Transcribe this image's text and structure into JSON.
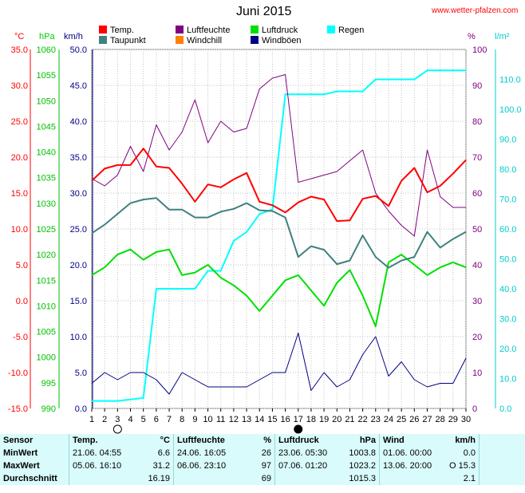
{
  "header": {
    "title": "Juni 2015",
    "site": "www.wetter-pfalzen.com"
  },
  "units": {
    "temp": "°C",
    "pressure": "hPa",
    "wind": "km/h",
    "humidity": "%",
    "rain": "l/m²"
  },
  "legend": [
    {
      "label": "Temp.",
      "color": "#ff0000"
    },
    {
      "label": "Luftfeuchte",
      "color": "#800080"
    },
    {
      "label": "Luftdruck",
      "color": "#00e000"
    },
    {
      "label": "Regen",
      "color": "#00ffff"
    },
    {
      "label": "Taupunkt",
      "color": "#408080"
    },
    {
      "label": "Windchill",
      "color": "#ff8000"
    },
    {
      "label": "Windböen",
      "color": "#000080"
    }
  ],
  "colors": {
    "temp": "#ff0000",
    "pressure": "#00d000",
    "humidity": "#800080",
    "rain": "#00ffff",
    "wind_axis": "#000080",
    "dew": "#408080",
    "gust": "#000080"
  },
  "chart_data": {
    "type": "line",
    "x": [
      1,
      2,
      3,
      4,
      5,
      6,
      7,
      8,
      9,
      10,
      11,
      12,
      13,
      14,
      15,
      16,
      17,
      18,
      19,
      20,
      21,
      22,
      23,
      24,
      25,
      26,
      27,
      28,
      29,
      30
    ],
    "axes": {
      "temp": {
        "label": "°C",
        "ylim": [
          -15,
          35
        ],
        "ticks": [
          "35.0",
          "30.0",
          "25.0",
          "20.0",
          "15.0",
          "10.0",
          "5.0",
          "0.0",
          "-5.0",
          "-10.0",
          "-15.0"
        ]
      },
      "pressure": {
        "label": "hPa",
        "ylim": [
          990,
          1060
        ],
        "ticks": [
          "1060",
          "1055",
          "1050",
          "1045",
          "1040",
          "1035",
          "1030",
          "1025",
          "1020",
          "1015",
          "1010",
          "1005",
          "1000",
          "995",
          "990"
        ]
      },
      "wind": {
        "label": "km/h",
        "ylim": [
          0,
          50
        ],
        "ticks": [
          "50.0",
          "45.0",
          "40.0",
          "35.0",
          "30.0",
          "25.0",
          "20.0",
          "15.0",
          "10.0",
          "5.0",
          "0.0"
        ]
      },
      "humidity": {
        "label": "%",
        "ylim": [
          0,
          100
        ],
        "ticks": [
          "100",
          "90",
          "80",
          "70",
          "60",
          "50",
          "40",
          "30",
          "20",
          "10",
          "0"
        ]
      },
      "rain": {
        "label": "l/m²",
        "ylim": [
          0,
          120
        ],
        "ticks": [
          "110.0",
          "100.0",
          "90.0",
          "80.0",
          "70.0",
          "60.0",
          "50.0",
          "40.0",
          "30.0",
          "20.0",
          "10.0",
          "0.0"
        ]
      }
    },
    "series": [
      {
        "name": "Temp.",
        "axis": "temp",
        "values": [
          16.7,
          18.4,
          18.9,
          18.9,
          21.2,
          18.7,
          18.5,
          16.3,
          13.8,
          16.2,
          15.8,
          16.9,
          17.8,
          13.8,
          13.3,
          12.3,
          13.7,
          14.5,
          14.1,
          11.1,
          11.2,
          14.2,
          14.6,
          13.2,
          16.7,
          18.5,
          15.1,
          16.0,
          17.7,
          19.6
        ]
      },
      {
        "name": "Taupunkt",
        "axis": "temp",
        "values": [
          9.4,
          10.6,
          12.1,
          13.6,
          14.1,
          14.3,
          12.7,
          12.7,
          11.6,
          11.6,
          12.4,
          12.8,
          13.6,
          12.6,
          12.5,
          11.6,
          6.1,
          7.6,
          7.1,
          5.1,
          5.6,
          9.1,
          6.1,
          4.6,
          5.6,
          6.1,
          9.6,
          7.4,
          8.6,
          9.6
        ]
      },
      {
        "name": "Luftfeuchte",
        "axis": "humidity",
        "values": [
          64,
          62,
          65,
          73,
          66,
          79,
          72,
          77,
          86,
          74,
          80,
          77,
          78,
          89,
          92,
          93,
          63,
          64,
          65,
          66,
          69,
          72,
          60,
          55,
          51,
          48,
          72,
          59,
          56,
          56
        ]
      },
      {
        "name": "Luftdruck",
        "axis": "pressure",
        "values": [
          1016,
          1017.5,
          1020,
          1021,
          1019,
          1020.5,
          1021,
          1016,
          1016.5,
          1018,
          1015.5,
          1014,
          1012,
          1009,
          1012,
          1015,
          1016,
          1013,
          1010,
          1014.5,
          1017,
          1012,
          1006,
          1018.5,
          1020,
          1018,
          1016,
          1017.5,
          1018.5,
          1017.5
        ]
      },
      {
        "name": "Regen",
        "axis": "rain",
        "values": [
          2.5,
          2.5,
          2.5,
          3.0,
          3.5,
          40.0,
          40.0,
          40.0,
          40.0,
          46.0,
          46.0,
          56.0,
          59.0,
          65.0,
          66.5,
          105.0,
          105.0,
          105.0,
          105.0,
          106.0,
          106.0,
          106.0,
          110.0,
          110.0,
          110.0,
          110.0,
          113.0,
          113.0,
          113.0,
          113.0
        ]
      },
      {
        "name": "Windböen",
        "axis": "wind",
        "values": [
          3.5,
          5.0,
          4.0,
          5.0,
          5.0,
          4.0,
          2.0,
          5.0,
          4.0,
          3.0,
          3.0,
          3.0,
          3.0,
          4.0,
          5.0,
          5.0,
          10.5,
          2.5,
          5.0,
          3.0,
          4.0,
          7.5,
          10.0,
          4.5,
          6.5,
          4.0,
          3.0,
          3.5,
          3.5,
          7.0
        ]
      }
    ],
    "moon_markers": [
      {
        "day": 3,
        "phase": "full"
      },
      {
        "day": 17,
        "phase": "new"
      }
    ]
  },
  "stats": {
    "headers": {
      "sensor": "Sensor",
      "temp": "Temp.",
      "temp_unit": "°C",
      "hum": "Luftfeuchte",
      "hum_unit": "%",
      "press": "Luftdruck",
      "press_unit": "hPa",
      "wind": "Wind",
      "wind_unit": "km/h"
    },
    "rows": [
      {
        "label": "MinWert",
        "t_time": "21.06.  04:55",
        "t_val": "6.6",
        "h_time": "24.06.  16:05",
        "h_val": "26",
        "p_time": "23.06.  05:30",
        "p_val": "1003.8",
        "w_time": "01.06.  00:00",
        "w_val": "0.0"
      },
      {
        "label": "MaxWert",
        "t_time": "05.06.  16:10",
        "t_val": "31.2",
        "h_time": "06.06.  23:10",
        "h_val": "97",
        "p_time": "07.06.  01:20",
        "p_val": "1023.2",
        "w_time": "13.06.  20:00",
        "w_val": "O 15.3"
      },
      {
        "label": "Durchschnitt",
        "t_time": "",
        "t_val": "16.19",
        "h_time": "",
        "h_val": "69",
        "p_time": "",
        "p_val": "1015.3",
        "w_time": "",
        "w_val": "2.1"
      }
    ]
  }
}
